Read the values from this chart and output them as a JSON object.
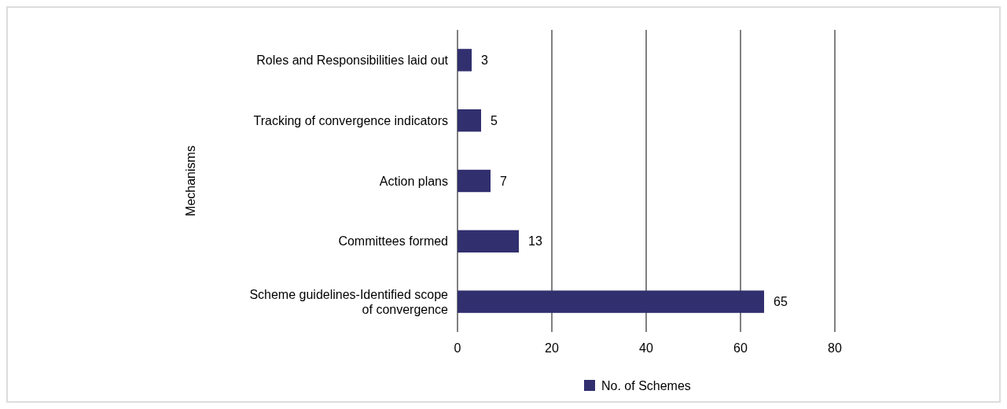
{
  "chart_data": {
    "type": "bar",
    "orientation": "horizontal",
    "ylabel": "Mechanisms",
    "categories": [
      "Roles and Responsibilities laid out",
      "Tracking of convergence indicators",
      "Action plans",
      "Committees formed",
      "Scheme guidelines-Identified scope of convergence"
    ],
    "series": [
      {
        "name": "No. of Schemes",
        "color": "#312f6e",
        "values": [
          3,
          5,
          7,
          13,
          65
        ]
      }
    ],
    "xlim": [
      0,
      80
    ],
    "xticks": [
      0,
      20,
      40,
      60,
      80
    ],
    "grid": "x",
    "legend": "bottom",
    "data_labels": true
  }
}
